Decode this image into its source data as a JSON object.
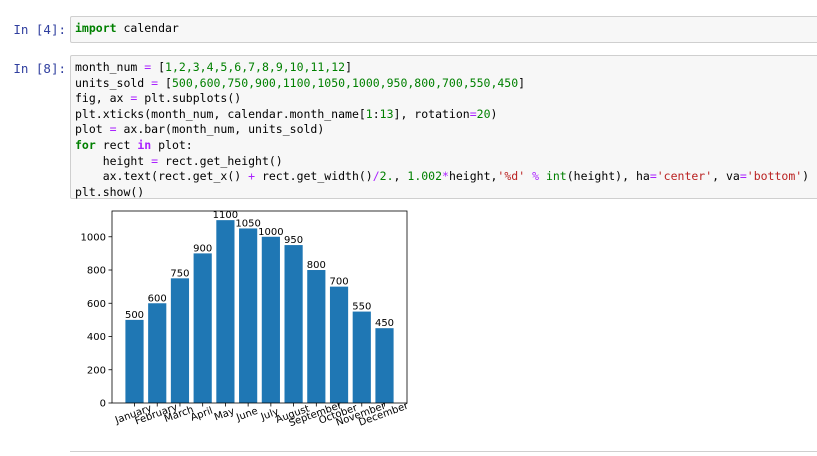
{
  "cells": [
    {
      "prompt": "In [4]:",
      "lines": [
        [
          {
            "t": "import",
            "k": "kw"
          },
          " calendar"
        ]
      ]
    },
    {
      "prompt": "In [8]:",
      "lines": [
        [
          "month_num ",
          {
            "t": "=",
            "k": "op"
          },
          " [",
          {
            "t": "1,2,3,4,5,6,7,8,9,10,11,12",
            "k": "num"
          },
          "]"
        ],
        [
          "units_sold ",
          {
            "t": "=",
            "k": "op"
          },
          " [",
          {
            "t": "500,600,750,900,1100,1050,1000,950,800,700,550,450",
            "k": "num"
          },
          "]"
        ],
        [
          "fig, ax ",
          {
            "t": "=",
            "k": "op"
          },
          " plt.subplots()"
        ],
        [
          "plt.xticks(month_num, calendar.month_name[",
          {
            "t": "1",
            "k": "num"
          },
          ":",
          {
            "t": "13",
            "k": "num"
          },
          "], rotation",
          {
            "t": "=",
            "k": "op"
          },
          {
            "t": "20",
            "k": "num"
          },
          ")"
        ],
        [
          "plot ",
          {
            "t": "=",
            "k": "op"
          },
          " ax.bar(month_num, units_sold)"
        ],
        [
          {
            "t": "for",
            "k": "kw"
          },
          " rect ",
          {
            "t": "in",
            "k": "ow"
          },
          " plot:"
        ],
        [
          "    height ",
          {
            "t": "=",
            "k": "op"
          },
          " rect.get_height()"
        ],
        [
          "    ax.text(rect.get_x() ",
          {
            "t": "+",
            "k": "op"
          },
          " rect.get_width()",
          {
            "t": "/",
            "k": "op"
          },
          {
            "t": "2.",
            "k": "num"
          },
          ", ",
          {
            "t": "1.002",
            "k": "num"
          },
          {
            "t": "*",
            "k": "op"
          },
          "height,",
          {
            "t": "'%d'",
            "k": "str"
          },
          " ",
          {
            "t": "%",
            "k": "op"
          },
          " ",
          {
            "t": "int",
            "k": "bi"
          },
          "(height), ha",
          {
            "t": "=",
            "k": "op"
          },
          {
            "t": "'center'",
            "k": "str"
          },
          ", va",
          {
            "t": "=",
            "k": "op"
          },
          {
            "t": "'bottom'",
            "k": "str"
          },
          ")"
        ],
        [
          "plt.show()"
        ]
      ]
    }
  ],
  "chart_data": {
    "type": "bar",
    "color": "#1f77b4",
    "x": [
      1,
      2,
      3,
      4,
      5,
      6,
      7,
      8,
      9,
      10,
      11,
      12
    ],
    "values": [
      500,
      600,
      750,
      900,
      1100,
      1050,
      1000,
      950,
      800,
      700,
      550,
      450
    ],
    "xlim": [
      0.01,
      12.99
    ],
    "ylim": [
      0,
      1155
    ],
    "xticks": [
      {
        "value": 1,
        "label": "January"
      },
      {
        "value": 2,
        "label": "February"
      },
      {
        "value": 3,
        "label": "March"
      },
      {
        "value": 4,
        "label": "April"
      },
      {
        "value": 5,
        "label": "May"
      },
      {
        "value": 6,
        "label": "June"
      },
      {
        "value": 7,
        "label": "July"
      },
      {
        "value": 8,
        "label": "August"
      },
      {
        "value": 9,
        "label": "September"
      },
      {
        "value": 10,
        "label": "October"
      },
      {
        "value": 11,
        "label": "November"
      },
      {
        "value": 12,
        "label": "December"
      }
    ],
    "yticks": [
      0,
      200,
      400,
      600,
      800,
      1000
    ],
    "xtick_rotation": 20
  }
}
